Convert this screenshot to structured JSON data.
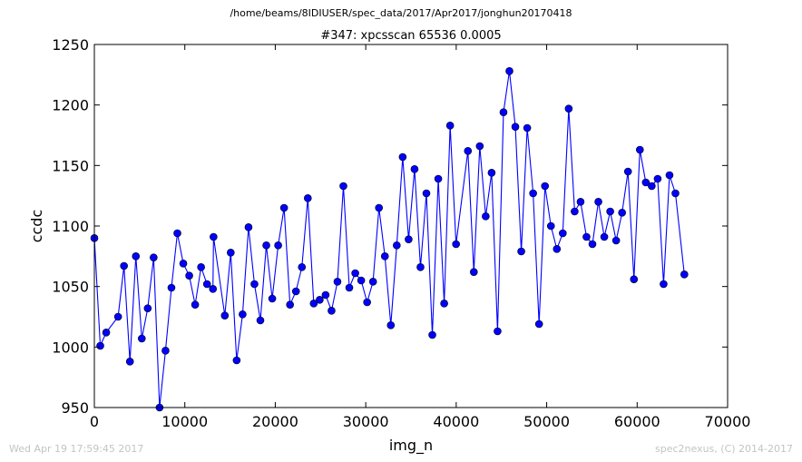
{
  "page": {
    "supertitle": "/home/beams/8IDIUSER/spec_data/2017/Apr2017/jonghun20170418",
    "timestamp": "Wed Apr 19 17:59:45 2017",
    "credit": "spec2nexus, (C) 2014-2017"
  },
  "colors": {
    "series": "#0000ff",
    "axis": "#000000",
    "footer": "#c4c4c4"
  },
  "chart_data": {
    "type": "line",
    "title": "#347: xpcsscan 65536 0.0005",
    "xlabel": "img_n",
    "ylabel": "ccdc",
    "xlim": [
      0,
      70000
    ],
    "ylim": [
      950,
      1250
    ],
    "xticks": [
      0,
      10000,
      20000,
      30000,
      40000,
      50000,
      60000,
      70000
    ],
    "yticks": [
      950,
      1000,
      1050,
      1100,
      1150,
      1200,
      1250
    ],
    "grid": false,
    "legend": "none",
    "markers": "circle",
    "x": [
      0,
      655,
      1311,
      2622,
      3277,
      3933,
      4588,
      5244,
      5899,
      6554,
      7210,
      7865,
      8521,
      9176,
      9832,
      10487,
      11143,
      11798,
      12453,
      13109,
      13174,
      14420,
      15075,
      15731,
      16386,
      17042,
      17697,
      18352,
      19008,
      19663,
      20319,
      20974,
      21630,
      22285,
      22941,
      23596,
      24252,
      24907,
      25562,
      26218,
      26873,
      27529,
      28184,
      28840,
      29495,
      30151,
      30806,
      31461,
      32117,
      32772,
      33428,
      34083,
      34739,
      35394,
      36050,
      36705,
      37360,
      38016,
      38671,
      39327,
      39982,
      41293,
      41949,
      42604,
      43260,
      43915,
      44570,
      45226,
      45881,
      46537,
      47192,
      47848,
      48503,
      49159,
      49814,
      50469,
      51125,
      51780,
      52436,
      53091,
      53747,
      54402,
      55058,
      55713,
      56369,
      57024,
      57679,
      58335,
      58990,
      59646,
      60301,
      60957,
      61612,
      62268,
      62923,
      63578,
      64234,
      65218
    ],
    "y": [
      1090,
      1001,
      1012,
      1025,
      1067,
      988,
      1075,
      1007,
      1032,
      1074,
      950,
      997,
      1049,
      1094,
      1069,
      1059,
      1035,
      1066,
      1052,
      1048,
      1091,
      1026,
      1078,
      989,
      1027,
      1099,
      1052,
      1022,
      1084,
      1040,
      1084,
      1115,
      1035,
      1046,
      1066,
      1123,
      1036,
      1039,
      1043,
      1030,
      1054,
      1133,
      1049,
      1061,
      1055,
      1037,
      1054,
      1115,
      1075,
      1018,
      1084,
      1157,
      1089,
      1147,
      1066,
      1127,
      1010,
      1139,
      1036,
      1183,
      1085,
      1162,
      1062,
      1166,
      1108,
      1144,
      1013,
      1194,
      1228,
      1182,
      1079,
      1181,
      1127,
      1019,
      1133,
      1100,
      1081,
      1094,
      1197,
      1112,
      1120,
      1091,
      1085,
      1120,
      1091,
      1112,
      1088,
      1111,
      1145,
      1056,
      1163,
      1136,
      1133,
      1139,
      1052,
      1142,
      1127,
      1060
    ]
  }
}
